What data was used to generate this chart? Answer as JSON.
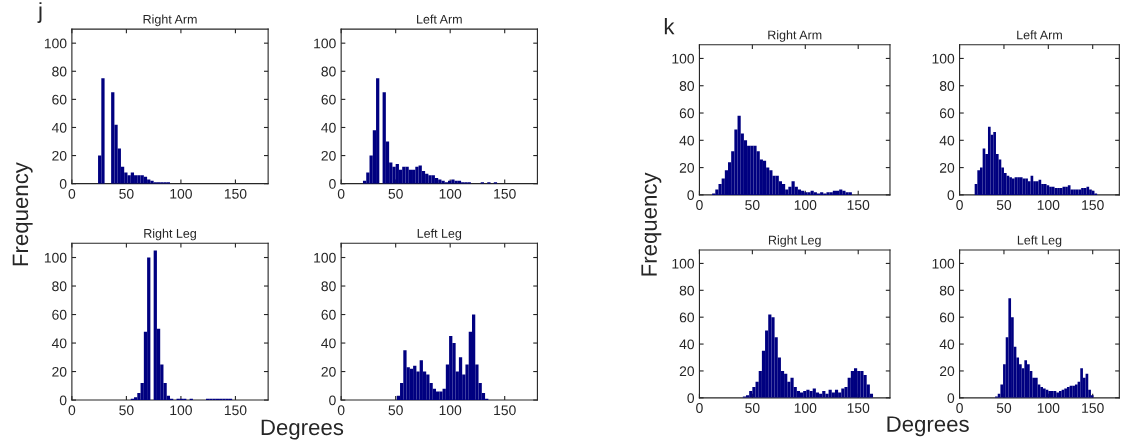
{
  "chart_data": [
    {
      "type": "histogram",
      "title": "Right Arm",
      "ylabel": "Frequency",
      "annotations": [
        "j"
      ],
      "color": "#000080",
      "xlim": [
        0,
        180
      ],
      "xticks": [
        0,
        50,
        100,
        150
      ],
      "ylim": [
        0,
        110
      ],
      "yticks": [
        0,
        20,
        40,
        60,
        80,
        100
      ],
      "bins": [
        24,
        27,
        30,
        33,
        36,
        39,
        42,
        45,
        48,
        51,
        54,
        57,
        60,
        63,
        66,
        69,
        72,
        75,
        78,
        81,
        84,
        87,
        90
      ],
      "values": [
        20,
        75,
        null,
        null,
        65,
        42,
        25,
        12,
        8,
        6,
        8,
        6,
        6,
        6,
        5,
        3,
        2,
        1,
        1,
        1,
        1,
        1
      ]
    },
    {
      "type": "histogram",
      "title": "Left Arm",
      "color": "#000080",
      "xlim": [
        0,
        180
      ],
      "xticks": [
        0,
        50,
        100,
        150
      ],
      "ylim": [
        0,
        110
      ],
      "yticks": [
        0,
        20,
        40,
        60,
        80,
        100
      ],
      "bins": [
        20,
        23,
        26,
        29,
        32,
        35,
        38,
        41,
        44,
        47,
        50,
        53,
        56,
        59,
        62,
        65,
        68,
        71,
        74,
        77,
        80,
        83,
        86,
        89,
        92,
        95,
        98,
        101,
        104,
        107,
        110,
        113,
        116,
        119,
        122,
        125,
        128,
        131,
        134,
        137,
        140,
        143
      ],
      "values": [
        2,
        8,
        20,
        38,
        75,
        null,
        65,
        30,
        15,
        12,
        14,
        10,
        12,
        12,
        10,
        10,
        12,
        13,
        9,
        7,
        6,
        6,
        4,
        3,
        2,
        1,
        2,
        3,
        2,
        2,
        1,
        1,
        1,
        0,
        0,
        0,
        1,
        0,
        1,
        0,
        1
      ]
    },
    {
      "type": "histogram",
      "title": "Right Leg",
      "color": "#000080",
      "xlim": [
        0,
        180
      ],
      "xticks": [
        0,
        50,
        100,
        150
      ],
      "ylim": [
        0,
        110
      ],
      "yticks": [
        0,
        20,
        40,
        60,
        80,
        100
      ],
      "bins": [
        54,
        57,
        60,
        63,
        66,
        69,
        72,
        75,
        78,
        81,
        84,
        87,
        90,
        93,
        96,
        99,
        102,
        105,
        108,
        111,
        114,
        117,
        120,
        123,
        126,
        129,
        132,
        135,
        138,
        141,
        144,
        147
      ],
      "values": [
        1,
        2,
        5,
        12,
        48,
        100,
        null,
        105,
        50,
        25,
        12,
        3,
        1,
        0,
        1,
        1,
        1,
        0,
        1,
        0,
        0,
        0,
        0,
        1,
        1,
        1,
        1,
        1,
        1,
        1,
        1
      ]
    },
    {
      "type": "histogram",
      "title": "Left Leg",
      "xlabel": "Degrees",
      "color": "#000080",
      "xlim": [
        0,
        180
      ],
      "xticks": [
        0,
        50,
        100,
        150
      ],
      "ylim": [
        0,
        110
      ],
      "yticks": [
        0,
        20,
        40,
        60,
        80,
        100
      ],
      "bins": [
        51,
        54,
        57,
        60,
        63,
        66,
        69,
        72,
        75,
        78,
        81,
        84,
        87,
        90,
        93,
        96,
        99,
        102,
        105,
        108,
        111,
        114,
        117,
        120,
        123,
        126,
        129,
        132,
        135
      ],
      "values": [
        3,
        12,
        35,
        23,
        22,
        24,
        20,
        28,
        20,
        18,
        12,
        8,
        6,
        6,
        8,
        25,
        45,
        40,
        20,
        30,
        18,
        25,
        48,
        60,
        25,
        12,
        5,
        1
      ]
    },
    {
      "type": "histogram",
      "title": "Right Arm",
      "ylabel": "Frequency",
      "annotations": [
        "k"
      ],
      "color": "#000080",
      "xlim": [
        0,
        180
      ],
      "xticks": [
        0,
        50,
        100,
        150
      ],
      "ylim": [
        0,
        110
      ],
      "yticks": [
        0,
        20,
        40,
        60,
        80,
        100
      ],
      "bins": [
        12,
        15,
        18,
        21,
        24,
        27,
        30,
        33,
        36,
        39,
        42,
        45,
        48,
        51,
        54,
        57,
        60,
        63,
        66,
        69,
        72,
        75,
        78,
        81,
        84,
        87,
        90,
        93,
        96,
        99,
        102,
        105,
        108,
        111,
        114,
        117,
        120,
        123,
        126,
        129,
        132,
        135,
        138,
        141,
        144
      ],
      "values": [
        1,
        4,
        8,
        12,
        18,
        24,
        32,
        48,
        58,
        45,
        40,
        36,
        36,
        36,
        32,
        26,
        25,
        20,
        18,
        14,
        14,
        10,
        8,
        4,
        6,
        10,
        6,
        4,
        3,
        2,
        2,
        3,
        2,
        1,
        2,
        1,
        2,
        2,
        3,
        3,
        4,
        3,
        2,
        2
      ]
    },
    {
      "type": "histogram",
      "title": "Left Arm",
      "color": "#000080",
      "xlim": [
        0,
        180
      ],
      "xticks": [
        0,
        50,
        100,
        150
      ],
      "ylim": [
        0,
        110
      ],
      "yticks": [
        0,
        20,
        40,
        60,
        80,
        100
      ],
      "bins": [
        17,
        20,
        23,
        26,
        29,
        32,
        35,
        38,
        41,
        44,
        47,
        50,
        53,
        56,
        59,
        62,
        65,
        68,
        71,
        74,
        77,
        80,
        83,
        86,
        89,
        92,
        95,
        98,
        101,
        104,
        107,
        110,
        113,
        116,
        119,
        122,
        125,
        128,
        131,
        134,
        137,
        140,
        143,
        146,
        149,
        152,
        155
      ],
      "values": [
        8,
        18,
        20,
        34,
        30,
        50,
        44,
        46,
        30,
        26,
        20,
        16,
        14,
        13,
        12,
        13,
        13,
        13,
        12,
        12,
        10,
        14,
        10,
        10,
        11,
        8,
        8,
        7,
        6,
        6,
        5,
        5,
        5,
        6,
        6,
        7,
        4,
        4,
        4,
        4,
        5,
        5,
        6,
        4,
        3,
        1
      ]
    },
    {
      "type": "histogram",
      "title": "Right Leg",
      "color": "#000080",
      "xlim": [
        0,
        180
      ],
      "xticks": [
        0,
        50,
        100,
        150
      ],
      "ylim": [
        0,
        110
      ],
      "yticks": [
        0,
        20,
        40,
        60,
        80,
        100
      ],
      "bins": [
        41,
        44,
        47,
        50,
        53,
        56,
        59,
        62,
        65,
        68,
        71,
        74,
        77,
        80,
        83,
        86,
        89,
        92,
        95,
        98,
        101,
        104,
        107,
        110,
        113,
        116,
        119,
        122,
        125,
        128,
        131,
        134,
        137,
        140,
        143,
        146,
        149,
        152,
        155,
        158,
        161,
        164
      ],
      "values": [
        1,
        2,
        5,
        8,
        12,
        20,
        35,
        50,
        62,
        60,
        45,
        30,
        20,
        18,
        12,
        15,
        8,
        5,
        4,
        5,
        6,
        5,
        7,
        4,
        3,
        5,
        3,
        6,
        4,
        6,
        4,
        7,
        8,
        15,
        20,
        22,
        20,
        20,
        17,
        10,
        3
      ]
    },
    {
      "type": "histogram",
      "title": "Left Leg",
      "xlabel": "Degrees",
      "color": "#000080",
      "xlim": [
        0,
        180
      ],
      "xticks": [
        0,
        50,
        100,
        150
      ],
      "ylim": [
        0,
        110
      ],
      "yticks": [
        0,
        20,
        40,
        60,
        80,
        100
      ],
      "bins": [
        40,
        43,
        46,
        49,
        52,
        55,
        58,
        61,
        64,
        67,
        70,
        73,
        76,
        79,
        82,
        85,
        88,
        91,
        94,
        97,
        100,
        103,
        106,
        109,
        112,
        115,
        118,
        121,
        124,
        127,
        130,
        133,
        136,
        139,
        142,
        145,
        148,
        151
      ],
      "values": [
        1,
        3,
        10,
        25,
        45,
        74,
        60,
        38,
        30,
        25,
        22,
        28,
        25,
        20,
        15,
        15,
        10,
        8,
        7,
        6,
        5,
        5,
        5,
        4,
        5,
        6,
        7,
        8,
        9,
        9,
        10,
        12,
        22,
        15,
        18,
        6,
        2
      ]
    }
  ]
}
